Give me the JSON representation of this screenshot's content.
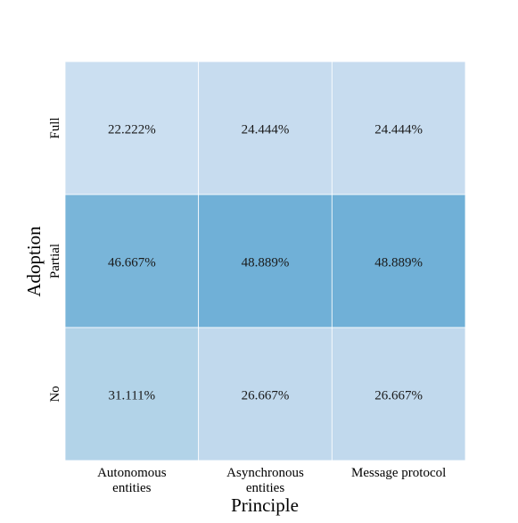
{
  "chart_data": {
    "type": "heatmap",
    "title": "",
    "xlabel": "Principle",
    "ylabel": "Adoption",
    "x_categories": [
      [
        "Autonomous",
        "entities"
      ],
      [
        "Asynchronous",
        "entities"
      ],
      [
        "Message protocol"
      ]
    ],
    "y_categories": [
      "Full",
      "Partial",
      "No"
    ],
    "values": [
      [
        22.222,
        24.444,
        24.444
      ],
      [
        46.667,
        48.889,
        48.889
      ],
      [
        31.111,
        26.667,
        26.667
      ]
    ],
    "cell_labels": [
      [
        "22.222%",
        "24.444%",
        "24.444%"
      ],
      [
        "46.667%",
        "48.889%",
        "48.889%"
      ],
      [
        "31.111%",
        "26.667%",
        "26.667%"
      ]
    ],
    "colormap": "Blues",
    "vmin": 0,
    "vmax": 100,
    "colorbar": false,
    "grid": false,
    "colors": {
      "cell_line": "#ffffff",
      "dark_text": "#1a1a1a",
      "light_text": "#ffffff"
    }
  }
}
